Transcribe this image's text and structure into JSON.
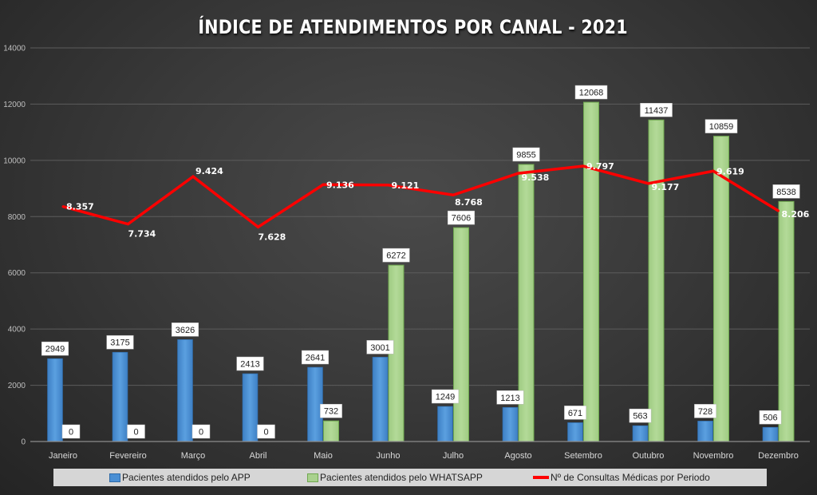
{
  "chart_data": {
    "type": "bar",
    "title": "ÍNDICE DE ATENDIMENTOS POR CANAL - 2021",
    "xlabel": "",
    "ylabel": "",
    "ylim": [
      0,
      14000
    ],
    "yticks": [
      "0",
      "2000",
      "4000",
      "6000",
      "8000",
      "10000",
      "12000",
      "14000"
    ],
    "grid": true,
    "legend_position": "bottom",
    "categories": [
      "Janeiro",
      "Fevereiro",
      "Março",
      "Abril",
      "Maio",
      "Junho",
      "Julho",
      "Agosto",
      "Setembro",
      "Outubro",
      "Novembro",
      "Dezembro"
    ],
    "series": [
      {
        "name": "Pacientes atendidos pelo APP",
        "type": "bar",
        "color": "#4a8fd4",
        "values": [
          2949,
          3175,
          3626,
          2413,
          2641,
          3001,
          1249,
          1213,
          671,
          563,
          728,
          506
        ],
        "labels": [
          "2949",
          "3175",
          "3626",
          "2413",
          "2641",
          "3001",
          "1249",
          "1213",
          "671",
          "563",
          "728",
          "506"
        ]
      },
      {
        "name": "Pacientes atendidos pelo WHATSAPP",
        "type": "bar",
        "color": "#a9d18e",
        "values": [
          0,
          0,
          0,
          0,
          732,
          6272,
          7606,
          9855,
          12068,
          11437,
          10859,
          8538
        ],
        "labels": [
          "0",
          "0",
          "0",
          "0",
          "732",
          "6272",
          "7606",
          "9855",
          "12068",
          "11437",
          "10859",
          "8538"
        ]
      },
      {
        "name": "Nº de Consultas Médicas por Periodo",
        "type": "line",
        "color": "#ff0000",
        "values": [
          8357,
          7734,
          9424,
          7628,
          9136,
          9121,
          8768,
          9538,
          9797,
          9177,
          9619,
          8206
        ],
        "labels": [
          "8.357",
          "7.734",
          "9.424",
          "7.628",
          "9.136",
          "9.121",
          "8.768",
          "9.538",
          "9.797",
          "9.177",
          "9.619",
          "8.206"
        ]
      }
    ]
  }
}
